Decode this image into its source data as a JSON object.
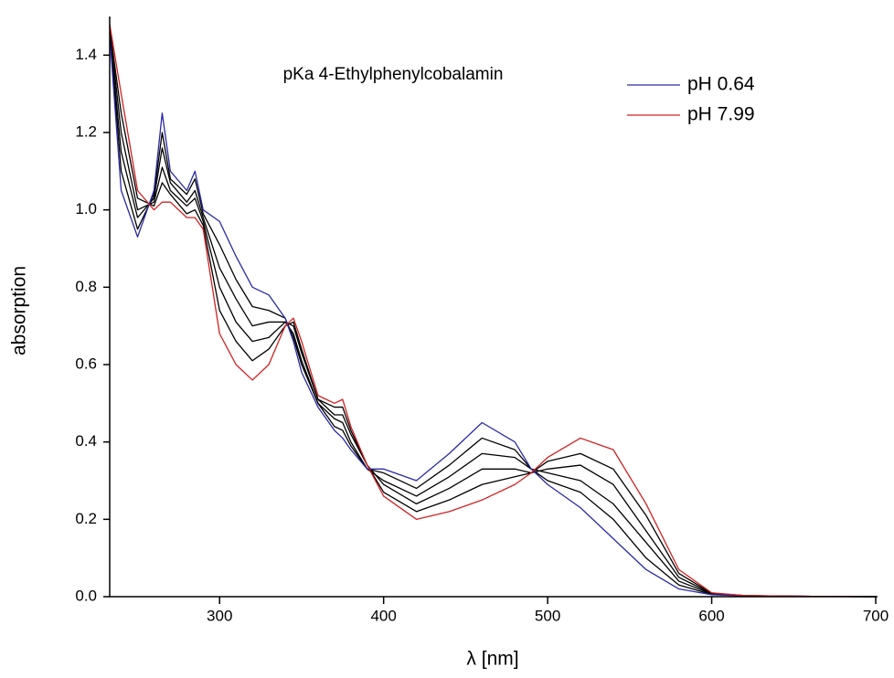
{
  "chart_data": {
    "type": "line",
    "title": "pKa 4-Ethylphenylcobalamin",
    "x_label": "λ [nm]",
    "y_label": "absorption",
    "x": [
      233,
      240,
      250,
      260,
      265,
      270,
      280,
      285,
      290,
      300,
      310,
      320,
      330,
      340,
      345,
      350,
      360,
      370,
      375,
      380,
      390,
      400,
      420,
      440,
      460,
      480,
      490,
      500,
      520,
      540,
      560,
      580,
      600,
      620,
      650,
      700
    ],
    "series": [
      {
        "color": "#000000",
        "values": [
          1.46,
          1.1,
          0.95,
          1.04,
          1.2,
          1.08,
          1.04,
          1.08,
          0.99,
          0.91,
          0.82,
          0.75,
          0.74,
          0.72,
          0.67,
          0.6,
          0.5,
          0.44,
          0.43,
          0.39,
          0.33,
          0.32,
          0.28,
          0.34,
          0.41,
          0.38,
          0.33,
          0.3,
          0.27,
          0.2,
          0.1,
          0.03,
          0.006,
          0.002,
          0.001,
          0
        ]
      },
      {
        "color": "#000000",
        "values": [
          1.46,
          1.15,
          0.98,
          1.03,
          1.16,
          1.07,
          1.02,
          1.05,
          0.98,
          0.85,
          0.77,
          0.7,
          0.71,
          0.71,
          0.68,
          0.61,
          0.5,
          0.46,
          0.45,
          0.4,
          0.33,
          0.3,
          0.26,
          0.31,
          0.37,
          0.36,
          0.33,
          0.32,
          0.3,
          0.24,
          0.14,
          0.04,
          0.007,
          0.002,
          0.001,
          0
        ]
      },
      {
        "color": "#000000",
        "values": [
          1.47,
          1.2,
          1.0,
          1.02,
          1.11,
          1.05,
          1.01,
          1.03,
          0.97,
          0.8,
          0.71,
          0.66,
          0.67,
          0.71,
          0.7,
          0.63,
          0.51,
          0.47,
          0.47,
          0.42,
          0.34,
          0.29,
          0.24,
          0.28,
          0.33,
          0.33,
          0.32,
          0.33,
          0.34,
          0.29,
          0.17,
          0.05,
          0.008,
          0.003,
          0.001,
          0
        ]
      },
      {
        "color": "#000000",
        "values": [
          1.47,
          1.25,
          1.03,
          1.01,
          1.07,
          1.04,
          0.99,
          1.0,
          0.96,
          0.74,
          0.66,
          0.61,
          0.64,
          0.7,
          0.71,
          0.64,
          0.51,
          0.49,
          0.49,
          0.43,
          0.34,
          0.27,
          0.22,
          0.25,
          0.29,
          0.31,
          0.32,
          0.35,
          0.37,
          0.33,
          0.21,
          0.06,
          0.009,
          0.003,
          0.001,
          0
        ]
      },
      {
        "name": "pH 0.64",
        "color": "#2a2aa8",
        "values": [
          1.45,
          1.05,
          0.93,
          1.05,
          1.25,
          1.1,
          1.05,
          1.1,
          1.0,
          0.97,
          0.88,
          0.8,
          0.78,
          0.72,
          0.66,
          0.58,
          0.49,
          0.43,
          0.41,
          0.38,
          0.33,
          0.33,
          0.3,
          0.37,
          0.45,
          0.4,
          0.33,
          0.29,
          0.23,
          0.15,
          0.07,
          0.02,
          0.005,
          0.002,
          0.001,
          0
        ]
      },
      {
        "name": "pH 7.99",
        "color": "#d42020",
        "values": [
          1.48,
          1.3,
          1.05,
          1.0,
          1.02,
          1.02,
          0.98,
          0.98,
          0.95,
          0.68,
          0.6,
          0.56,
          0.6,
          0.7,
          0.72,
          0.66,
          0.52,
          0.5,
          0.51,
          0.44,
          0.34,
          0.26,
          0.2,
          0.22,
          0.25,
          0.29,
          0.32,
          0.36,
          0.41,
          0.38,
          0.24,
          0.07,
          0.01,
          0.003,
          0.001,
          0
        ]
      }
    ],
    "xlim": [
      233,
      700
    ],
    "xticks": [
      300,
      400,
      500,
      600,
      700
    ],
    "ylim": [
      0,
      1.5
    ],
    "yticks": [
      {
        "value": 0,
        "label": "0.0"
      },
      0.2,
      0.4,
      0.6,
      0.8,
      {
        "value": 1,
        "label": "1.0"
      },
      1.2,
      1.4
    ],
    "legend": "top-right",
    "grid": false
  }
}
